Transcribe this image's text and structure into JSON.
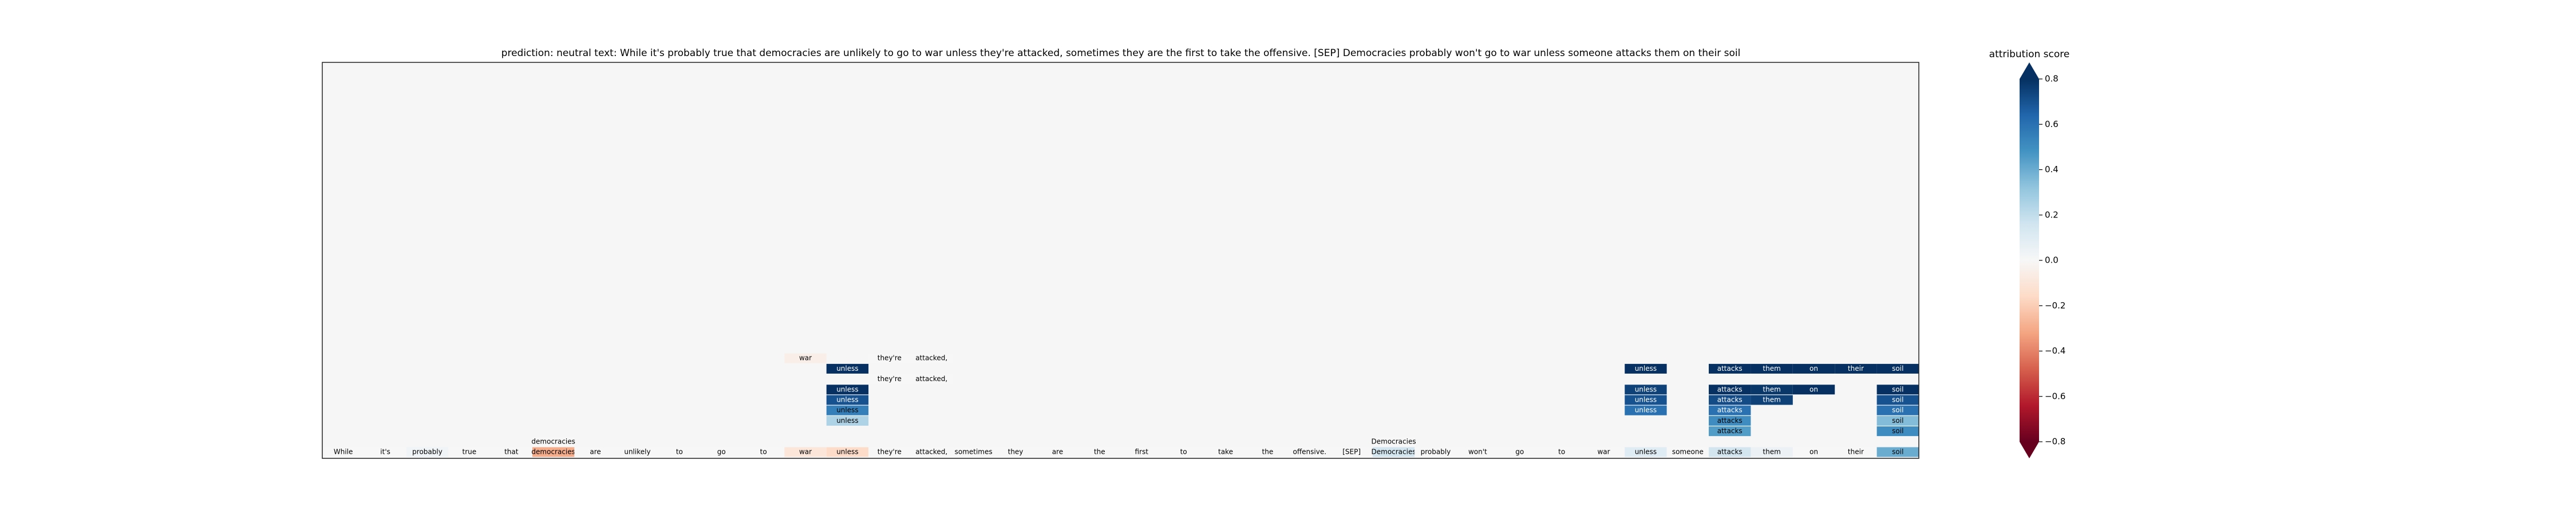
{
  "chart_data": {
    "type": "token-heatmap",
    "title": "prediction:  neutral     text:  While it's probably true that democracies are unlikely to go to war unless they're attacked, sometimes they are the first to take the offensive. [SEP] Democracies probably won't go to war unless someone attacks them on their soil",
    "colorbar_label": "attribution score",
    "colormap": "RdBu",
    "clim": [
      -0.8,
      0.8
    ],
    "cticks": [
      {
        "value": -0.8,
        "label": "−0.8"
      },
      {
        "value": -0.6,
        "label": "−0.6"
      },
      {
        "value": -0.4,
        "label": "−0.4"
      },
      {
        "value": -0.2,
        "label": "−0.2"
      },
      {
        "value": 0,
        "label": "0.0"
      },
      0.2,
      0.4,
      0.6,
      0.8
    ],
    "rows": [
      {
        "tokens": [
          null,
          null,
          null,
          null,
          null,
          null,
          null,
          null,
          null,
          null,
          null,
          "war",
          null,
          "they're",
          "attacked,",
          null,
          null,
          null,
          null,
          null,
          null,
          null,
          null,
          null,
          null,
          null,
          null,
          null,
          null,
          null,
          null,
          null,
          null,
          null,
          null,
          null,
          null,
          null
        ],
        "values": [
          null,
          null,
          null,
          null,
          null,
          null,
          null,
          null,
          null,
          null,
          null,
          -0.05,
          null,
          0,
          0,
          null,
          null,
          null,
          null,
          null,
          null,
          null,
          null,
          null,
          null,
          null,
          null,
          null,
          null,
          null,
          null,
          null,
          null,
          null,
          null,
          null,
          null,
          null
        ]
      },
      {
        "tokens": [
          null,
          null,
          null,
          null,
          null,
          null,
          null,
          null,
          null,
          null,
          null,
          null,
          "unless",
          null,
          null,
          null,
          null,
          null,
          null,
          null,
          null,
          null,
          null,
          null,
          null,
          null,
          null,
          null,
          null,
          null,
          null,
          "unless",
          null,
          "attacks",
          "them",
          "on",
          "their",
          "soil"
        ],
        "values": [
          null,
          null,
          null,
          null,
          null,
          null,
          null,
          null,
          null,
          null,
          null,
          null,
          0.8,
          null,
          null,
          null,
          null,
          null,
          null,
          null,
          null,
          null,
          null,
          null,
          null,
          null,
          null,
          null,
          null,
          null,
          null,
          0.8,
          null,
          0.8,
          0.8,
          0.8,
          0.8,
          0.8
        ]
      },
      {
        "tokens": [
          null,
          null,
          null,
          null,
          null,
          null,
          null,
          null,
          null,
          null,
          null,
          null,
          null,
          "they're",
          "attacked,",
          null,
          null,
          null,
          null,
          null,
          null,
          null,
          null,
          null,
          null,
          null,
          null,
          null,
          null,
          null,
          null,
          null,
          null,
          null,
          null,
          null,
          null,
          null
        ],
        "values": [
          null,
          null,
          null,
          null,
          null,
          null,
          null,
          null,
          null,
          null,
          null,
          null,
          null,
          0,
          0,
          null,
          null,
          null,
          null,
          null,
          null,
          null,
          null,
          null,
          null,
          null,
          null,
          null,
          null,
          null,
          null,
          null,
          null,
          null,
          null,
          null,
          null,
          null
        ]
      },
      {
        "tokens": [
          null,
          null,
          null,
          null,
          null,
          null,
          null,
          null,
          null,
          null,
          null,
          null,
          "unless",
          null,
          null,
          null,
          null,
          null,
          null,
          null,
          null,
          null,
          null,
          null,
          null,
          null,
          null,
          null,
          null,
          null,
          null,
          "unless",
          null,
          "attacks",
          "them",
          "on",
          null,
          "soil"
        ],
        "values": [
          null,
          null,
          null,
          null,
          null,
          null,
          null,
          null,
          null,
          null,
          null,
          null,
          0.8,
          null,
          null,
          null,
          null,
          null,
          null,
          null,
          null,
          null,
          null,
          null,
          null,
          null,
          null,
          null,
          null,
          null,
          null,
          0.75,
          null,
          0.8,
          0.78,
          0.8,
          null,
          0.8
        ]
      },
      {
        "tokens": [
          null,
          null,
          null,
          null,
          null,
          null,
          null,
          null,
          null,
          null,
          null,
          null,
          "unless",
          null,
          null,
          null,
          null,
          null,
          null,
          null,
          null,
          null,
          null,
          null,
          null,
          null,
          null,
          null,
          null,
          null,
          null,
          "unless",
          null,
          "attacks",
          "them",
          null,
          null,
          "soil"
        ],
        "values": [
          null,
          null,
          null,
          null,
          null,
          null,
          null,
          null,
          null,
          null,
          null,
          null,
          0.7,
          null,
          null,
          null,
          null,
          null,
          null,
          null,
          null,
          null,
          null,
          null,
          null,
          null,
          null,
          null,
          null,
          null,
          null,
          0.7,
          null,
          0.72,
          0.75,
          null,
          null,
          0.7
        ]
      },
      {
        "tokens": [
          null,
          null,
          null,
          null,
          null,
          null,
          null,
          null,
          null,
          null,
          null,
          null,
          "unless",
          null,
          null,
          null,
          null,
          null,
          null,
          null,
          null,
          null,
          null,
          null,
          null,
          null,
          null,
          null,
          null,
          null,
          null,
          "unless",
          null,
          "attacks",
          null,
          null,
          null,
          "soil"
        ],
        "values": [
          null,
          null,
          null,
          null,
          null,
          null,
          null,
          null,
          null,
          null,
          null,
          null,
          0.55,
          null,
          null,
          null,
          null,
          null,
          null,
          null,
          null,
          null,
          null,
          null,
          null,
          null,
          null,
          null,
          null,
          null,
          null,
          0.6,
          null,
          0.6,
          null,
          null,
          null,
          0.6
        ]
      },
      {
        "tokens": [
          null,
          null,
          null,
          null,
          null,
          null,
          null,
          null,
          null,
          null,
          null,
          null,
          "unless",
          null,
          null,
          null,
          null,
          null,
          null,
          null,
          null,
          null,
          null,
          null,
          null,
          null,
          null,
          null,
          null,
          null,
          null,
          null,
          null,
          "attacks",
          null,
          null,
          null,
          "soil"
        ],
        "values": [
          null,
          null,
          null,
          null,
          null,
          null,
          null,
          null,
          null,
          null,
          null,
          null,
          0.25,
          null,
          null,
          null,
          null,
          null,
          null,
          null,
          null,
          null,
          null,
          null,
          null,
          null,
          null,
          null,
          null,
          null,
          null,
          null,
          null,
          0.5,
          null,
          null,
          null,
          0.35
        ]
      },
      {
        "tokens": [
          null,
          null,
          null,
          null,
          null,
          null,
          null,
          null,
          null,
          null,
          null,
          null,
          null,
          null,
          null,
          null,
          null,
          null,
          null,
          null,
          null,
          null,
          null,
          null,
          null,
          null,
          null,
          null,
          null,
          null,
          null,
          null,
          null,
          "attacks",
          null,
          null,
          null,
          "soil"
        ],
        "values": [
          null,
          null,
          null,
          null,
          null,
          null,
          null,
          null,
          null,
          null,
          null,
          null,
          null,
          null,
          null,
          null,
          null,
          null,
          null,
          null,
          null,
          null,
          null,
          null,
          null,
          null,
          null,
          null,
          null,
          null,
          null,
          null,
          null,
          0.45,
          null,
          null,
          null,
          0.5
        ]
      },
      {
        "tokens": [
          null,
          null,
          null,
          null,
          null,
          "democracies",
          null,
          null,
          null,
          null,
          null,
          null,
          null,
          null,
          null,
          null,
          null,
          null,
          null,
          null,
          null,
          null,
          null,
          null,
          null,
          "Democracies",
          null,
          null,
          null,
          null,
          null,
          null,
          null,
          null,
          null,
          null,
          null,
          null
        ],
        "values": [
          null,
          null,
          null,
          null,
          null,
          0,
          null,
          null,
          null,
          null,
          null,
          null,
          null,
          null,
          null,
          null,
          null,
          null,
          null,
          null,
          null,
          null,
          null,
          null,
          null,
          0,
          null,
          null,
          null,
          null,
          null,
          null,
          null,
          null,
          null,
          null,
          null,
          null
        ]
      },
      {
        "tokens": [
          "While",
          "it's",
          "probably",
          "true",
          "that",
          "democracies",
          "are",
          "unlikely",
          "to",
          "go",
          "to",
          "war",
          "unless",
          "they're",
          "attacked,",
          "sometimes",
          "they",
          "are",
          "the",
          "first",
          "to",
          "take",
          "the",
          "offensive.",
          "[SEP]",
          "Democracies",
          "probably",
          "won't",
          "go",
          "to",
          "war",
          "unless",
          "someone",
          "attacks",
          "them",
          "on",
          "their",
          "soil"
        ],
        "values": [
          0,
          0,
          0.03,
          0,
          0,
          -0.3,
          0,
          0,
          0,
          0,
          0,
          -0.1,
          -0.15,
          0,
          0,
          0,
          0,
          0,
          0,
          0,
          0,
          0,
          0,
          0,
          0,
          0.15,
          0,
          0,
          0,
          0,
          0,
          0.1,
          0,
          0.15,
          0.05,
          0,
          0,
          0.4
        ]
      }
    ]
  }
}
